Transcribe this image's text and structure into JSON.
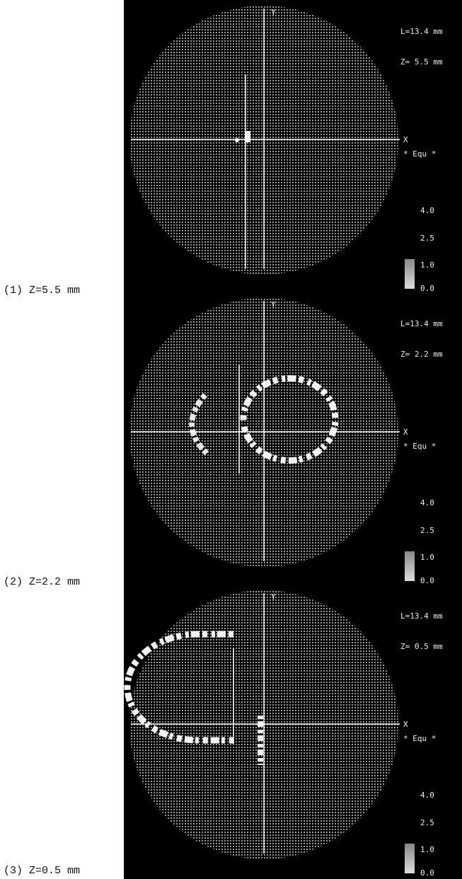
{
  "panels": [
    {
      "caption": "(1) Z=5.5 mm",
      "length": "L=13.4 mm",
      "depth": "Z= 5.5 mm",
      "y_axis": "Y",
      "x_axis": "X",
      "legend": "* Equ *",
      "scale": [
        "4.0",
        "2.5",
        "1.0",
        "0.0"
      ]
    },
    {
      "caption": "(2) Z=2.2 mm",
      "length": "L=13.4 mm",
      "depth": "Z= 2.2 mm",
      "y_axis": "Y",
      "x_axis": "X",
      "legend": "* Equ *",
      "scale": [
        "4.0",
        "2.5",
        "1.0",
        "0.0"
      ]
    },
    {
      "caption": "(3) Z=0.5 mm",
      "length": "L=13.4 mm",
      "depth": "Z= 0.5 mm",
      "y_axis": "Y",
      "x_axis": "X",
      "legend": "* Equ *",
      "scale": [
        "4.0",
        "2.5",
        "1.0",
        "0.0"
      ]
    }
  ]
}
